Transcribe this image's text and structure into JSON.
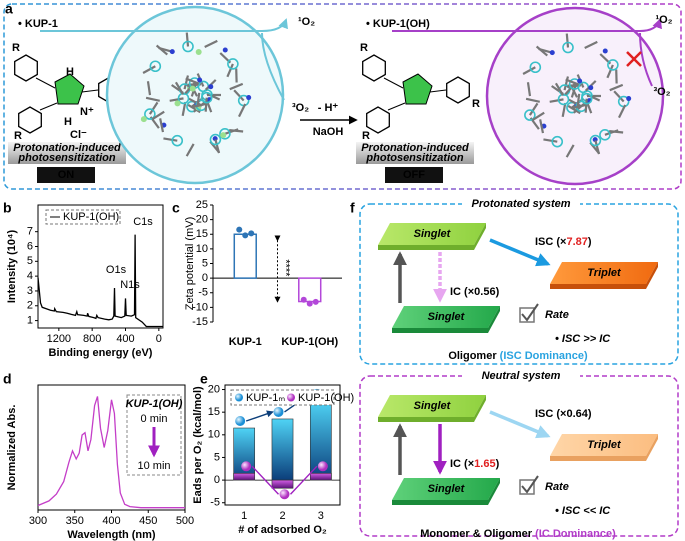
{
  "panel_a": {
    "label": "a",
    "left": {
      "name": "• KUP-1",
      "atoms": [
        "R",
        "R",
        "R",
        "H",
        "N⁺",
        "H",
        "Cl⁻"
      ],
      "label_lines": [
        "Protonation-induced",
        "photosensitization"
      ],
      "state": "ON",
      "singlet_oxygen": "¹O₂",
      "triplet_oxygen": "³O₂"
    },
    "reaction": {
      "reagent_top": "- H⁺",
      "reagent_bottom": "NaOH"
    },
    "right": {
      "name": "• KUP-1(OH)",
      "atoms": [
        "R",
        "R",
        "R"
      ],
      "label_lines": [
        "Protonation-induced",
        "photosensitization"
      ],
      "state": "OFF",
      "singlet_oxygen": "¹O₂",
      "triplet_oxygen": "³O₂"
    }
  },
  "chart_data": [
    {
      "type": "line",
      "panel_label": "b",
      "x_label": "Binding energy (eV)",
      "y_label": "Intensity (10⁴)",
      "x": [
        1450,
        1420,
        1400,
        1350,
        1300,
        1255,
        1250,
        1230,
        1150,
        1100,
        1050,
        1000,
        985,
        975,
        900,
        860,
        855,
        840,
        780,
        755,
        745,
        730,
        650,
        600,
        560,
        540,
        532,
        525,
        450,
        408,
        400,
        392,
        330,
        292,
        285,
        278,
        200,
        150,
        100,
        -50
      ],
      "series": [
        {
          "name": "KUP-1(OH)",
          "color": "#000000",
          "values": [
            3.9,
            2.2,
            1.9,
            1.8,
            1.7,
            1.65,
            1.8,
            1.6,
            1.55,
            1.5,
            1.42,
            1.35,
            1.6,
            1.4,
            1.35,
            1.3,
            1.5,
            1.28,
            1.2,
            1.15,
            1.35,
            1.2,
            1.1,
            1.05,
            1.1,
            1.3,
            3.2,
            1.3,
            1.2,
            1.3,
            2.5,
            1.35,
            1.3,
            1.4,
            6.8,
            1.2,
            0.9,
            0.6,
            0.6,
            0.6
          ]
        }
      ],
      "xlim": [
        1450,
        -50
      ],
      "xticks": [
        1200,
        800,
        400,
        0
      ],
      "ylim": [
        0.5,
        8.8
      ],
      "yticks": [
        1,
        2,
        3,
        4,
        5,
        6,
        7
      ],
      "annotations": [
        "C1s",
        "N1s",
        "O1s"
      ]
    },
    {
      "type": "bar",
      "panel_label": "c",
      "y_label": "Zeta potential (mV)",
      "categories": [
        "KUP-1",
        "KUP-1(OH)"
      ],
      "values": [
        15,
        -8
      ],
      "colors": [
        "#2e75b6",
        "#b347d9"
      ],
      "replicates": [
        [
          16.6,
          14.6,
          15.3
        ],
        [
          -7.4,
          -8.7,
          -8.1
        ]
      ],
      "ylim": [
        -15,
        25
      ],
      "yticks": [
        -15,
        -10,
        -5,
        0,
        5,
        10,
        15,
        20,
        25
      ],
      "annotations": [
        "****"
      ]
    },
    {
      "type": "line",
      "panel_label": "d",
      "x_label": "Wavelength (nm)",
      "y_label": "Normalized Abs.",
      "x": [
        300,
        315,
        325,
        335,
        342,
        347,
        352,
        356,
        360,
        364,
        368,
        372,
        377,
        381,
        385,
        390,
        395,
        400,
        404,
        408,
        412,
        418,
        425,
        440,
        470,
        500
      ],
      "values": [
        0.04,
        0.08,
        0.14,
        0.25,
        0.42,
        0.52,
        0.45,
        0.5,
        0.66,
        0.68,
        0.52,
        0.62,
        0.92,
        1.0,
        0.72,
        0.55,
        0.7,
        0.97,
        0.85,
        0.4,
        0.15,
        0.05,
        0.03,
        0.02,
        0.02,
        0.02
      ],
      "color": "#c43ec8",
      "xlim": [
        300,
        500
      ],
      "xticks": [
        300,
        350,
        400,
        450,
        500
      ],
      "ylim": [
        0,
        1.1
      ],
      "inset": {
        "title": "KUP-1(OH)",
        "start": "0 min",
        "end": "10 min"
      }
    },
    {
      "type": "bar",
      "panel_label": "e",
      "x_label": "# of adsorbed O₂",
      "y_label": "Eads per O₂ (kcal/mol)",
      "categories": [
        "1",
        "2",
        "3"
      ],
      "series": [
        {
          "name": "KUP-1ₘ",
          "color": "#1b8fd6",
          "values": [
            11.5,
            13.5,
            17.5
          ]
        },
        {
          "name": "KUP-1(OH)",
          "color": "#b02fc0",
          "values": [
            1.5,
            -1.8,
            1.5
          ]
        }
      ],
      "ylim": [
        -5.5,
        21
      ],
      "yticks": [
        -5,
        0,
        5,
        10,
        15,
        20
      ]
    }
  ],
  "panel_f": {
    "label": "f",
    "systems": [
      {
        "title": "Protonated system",
        "upper_state": "Singlet",
        "triplet": "Triplet",
        "lower_state": "Singlet",
        "isc": {
          "prefix": "ISC (×",
          "value": "7.87",
          "suffix": ")"
        },
        "ic": {
          "prefix": "IC (×",
          "value": "0.56",
          "suffix": ")"
        },
        "rate": "Rate",
        "comparison": "• ISC >> IC",
        "footer": {
          "main": "Oligomer ",
          "highlight": "(ISC Dominance)"
        }
      },
      {
        "title": "Neutral system",
        "upper_state": "Singlet",
        "triplet": "Triplet",
        "lower_state": "Singlet",
        "isc": {
          "prefix": "ISC (×",
          "value": "0.64",
          "suffix": ")"
        },
        "ic": {
          "prefix": "IC (×",
          "value": "1.65",
          "suffix": ")"
        },
        "rate": "Rate",
        "comparison": "• ISC << IC",
        "footer": {
          "main": "Monomer & Oligomer ",
          "highlight": "(IC Dominance)"
        }
      }
    ]
  }
}
